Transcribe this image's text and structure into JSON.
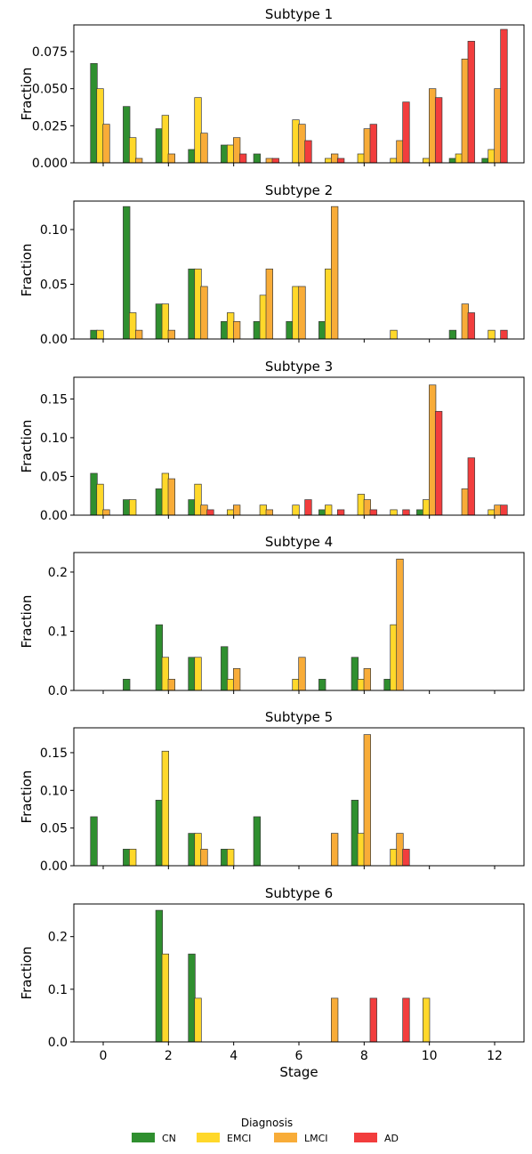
{
  "chart_data": {
    "type": "bar",
    "xlabel": "Stage",
    "ylabel": "Fraction",
    "x_ticks": [
      0,
      2,
      4,
      6,
      8,
      10,
      12
    ],
    "xlim": [
      -0.9,
      12.9
    ],
    "legend": {
      "title": "Diagnosis",
      "placement": "bottom-center",
      "entries": [
        "CN",
        "EMCI",
        "LMCI",
        "AD"
      ]
    },
    "colors": {
      "CN": "#2f8f2f",
      "EMCI": "#ffd82a",
      "LMCI": "#f8ac38",
      "AD": "#f23d3d"
    },
    "series_names": [
      "CN",
      "EMCI",
      "LMCI",
      "AD"
    ],
    "subplots": [
      {
        "title": "Subtype 1",
        "ylim": [
          0,
          0.093
        ],
        "yticks": [
          "0.000",
          "0.025",
          "0.050",
          "0.075"
        ],
        "ytick_values": [
          0,
          0.025,
          0.05,
          0.075
        ],
        "values": {
          "CN": [
            0.067,
            0.038,
            0.023,
            0.009,
            0.012,
            0.006,
            0,
            0,
            0,
            0,
            0,
            0.003,
            0.003
          ],
          "EMCI": [
            0.05,
            0.017,
            0.032,
            0.044,
            0.012,
            0,
            0.029,
            0.003,
            0.006,
            0.003,
            0.003,
            0.006,
            0.009
          ],
          "LMCI": [
            0.026,
            0.003,
            0.006,
            0.02,
            0.017,
            0.003,
            0.026,
            0.006,
            0.023,
            0.015,
            0.05,
            0.07,
            0.05
          ],
          "AD": [
            0,
            0,
            0,
            0,
            0.006,
            0.003,
            0.015,
            0.003,
            0.026,
            0.041,
            0.044,
            0.082,
            0.09
          ]
        }
      },
      {
        "title": "Subtype 2",
        "ylim": [
          0,
          0.126
        ],
        "yticks": [
          "0.00",
          "0.05",
          "0.10"
        ],
        "ytick_values": [
          0,
          0.05,
          0.1
        ],
        "values": {
          "CN": [
            0.008,
            0.121,
            0.032,
            0.064,
            0.016,
            0.016,
            0.016,
            0.016,
            0,
            0,
            0,
            0.008,
            0
          ],
          "EMCI": [
            0.008,
            0.024,
            0.032,
            0.064,
            0.024,
            0.04,
            0.048,
            0.064,
            0,
            0.008,
            0,
            0,
            0.008
          ],
          "LMCI": [
            0,
            0.008,
            0.008,
            0.048,
            0.016,
            0.064,
            0.048,
            0.121,
            0,
            0,
            0,
            0.032,
            0
          ],
          "AD": [
            0,
            0,
            0,
            0,
            0,
            0,
            0,
            0,
            0,
            0,
            0,
            0.024,
            0.008
          ]
        }
      },
      {
        "title": "Subtype 3",
        "ylim": [
          0,
          0.178
        ],
        "yticks": [
          "0.00",
          "0.05",
          "0.10",
          "0.15"
        ],
        "ytick_values": [
          0,
          0.05,
          0.1,
          0.15
        ],
        "values": {
          "CN": [
            0.054,
            0.02,
            0.034,
            0.02,
            0,
            0,
            0,
            0.007,
            0,
            0,
            0.007,
            0,
            0
          ],
          "EMCI": [
            0.04,
            0.02,
            0.054,
            0.04,
            0.007,
            0.013,
            0.013,
            0.013,
            0.027,
            0.007,
            0.02,
            0,
            0.007
          ],
          "LMCI": [
            0.007,
            0,
            0.047,
            0.013,
            0.013,
            0.007,
            0,
            0,
            0.02,
            0,
            0.168,
            0.034,
            0.013
          ],
          "AD": [
            0,
            0,
            0,
            0.007,
            0,
            0,
            0.02,
            0.007,
            0.007,
            0.007,
            0.134,
            0.074,
            0.013
          ]
        }
      },
      {
        "title": "Subtype 4",
        "ylim": [
          0,
          0.233
        ],
        "yticks": [
          "0.0",
          "0.1",
          "0.2"
        ],
        "ytick_values": [
          0,
          0.1,
          0.2
        ],
        "values": {
          "CN": [
            0,
            0.019,
            0.111,
            0.056,
            0.074,
            0,
            0,
            0.019,
            0.056,
            0.019,
            0,
            0,
            0
          ],
          "EMCI": [
            0,
            0,
            0.056,
            0.056,
            0.019,
            0,
            0.019,
            0,
            0.019,
            0.111,
            0,
            0,
            0
          ],
          "LMCI": [
            0,
            0,
            0.019,
            0,
            0.037,
            0,
            0.056,
            0,
            0.037,
            0.222,
            0,
            0,
            0
          ],
          "AD": [
            0,
            0,
            0,
            0,
            0,
            0,
            0,
            0,
            0,
            0,
            0,
            0,
            0
          ]
        }
      },
      {
        "title": "Subtype 5",
        "ylim": [
          0,
          0.183
        ],
        "yticks": [
          "0.00",
          "0.05",
          "0.10",
          "0.15"
        ],
        "ytick_values": [
          0,
          0.05,
          0.1,
          0.15
        ],
        "values": {
          "CN": [
            0.065,
            0.022,
            0.087,
            0.043,
            0.022,
            0.065,
            0,
            0,
            0.087,
            0,
            0,
            0,
            0
          ],
          "EMCI": [
            0,
            0.022,
            0.152,
            0.043,
            0.022,
            0,
            0,
            0,
            0.043,
            0.022,
            0,
            0,
            0
          ],
          "LMCI": [
            0,
            0,
            0,
            0.022,
            0,
            0,
            0,
            0.043,
            0.174,
            0.043,
            0,
            0,
            0
          ],
          "AD": [
            0,
            0,
            0,
            0,
            0,
            0,
            0,
            0,
            0,
            0.022,
            0,
            0,
            0
          ]
        }
      },
      {
        "title": "Subtype 6",
        "ylim": [
          0,
          0.262
        ],
        "yticks": [
          "0.0",
          "0.1",
          "0.2"
        ],
        "ytick_values": [
          0,
          0.1,
          0.2
        ],
        "values": {
          "CN": [
            0,
            0,
            0.25,
            0.167,
            0,
            0,
            0,
            0,
            0,
            0,
            0,
            0,
            0
          ],
          "EMCI": [
            0,
            0,
            0.167,
            0.083,
            0,
            0,
            0,
            0,
            0,
            0,
            0.083,
            0,
            0
          ],
          "LMCI": [
            0,
            0,
            0,
            0,
            0,
            0,
            0,
            0.083,
            0,
            0,
            0,
            0,
            0
          ],
          "AD": [
            0,
            0,
            0,
            0,
            0,
            0,
            0,
            0,
            0.083,
            0.083,
            0,
            0,
            0
          ]
        }
      }
    ]
  }
}
